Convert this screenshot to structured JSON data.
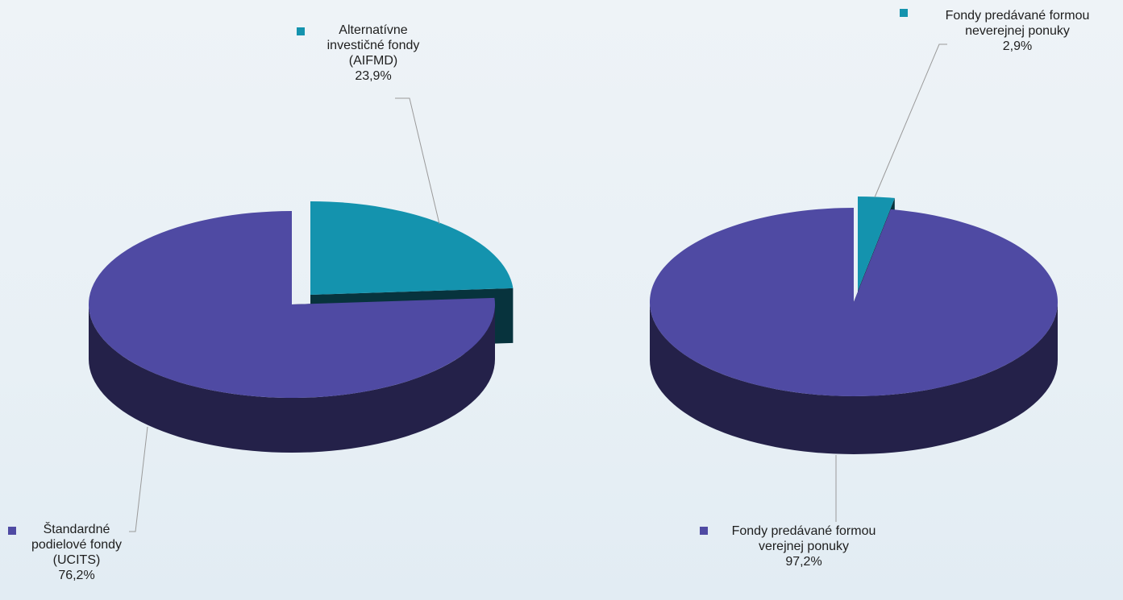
{
  "chart_data": [
    {
      "type": "pie",
      "labels": [
        "Alternatívne investičné fondy (AIFMD)",
        "Štandardné podielové fondy (UCITS)"
      ],
      "values": [
        23.9,
        76.2
      ],
      "value_labels": [
        "23,9%",
        "76,2%"
      ],
      "colors": [
        "#1493ae",
        "#4f4aa3"
      ]
    },
    {
      "type": "pie",
      "labels": [
        "Fondy predávané formou neverejnej ponuky",
        "Fondy predávané formou verejnej ponuky"
      ],
      "values": [
        2.9,
        97.2
      ],
      "value_labels": [
        "2,9%",
        "97,2%"
      ],
      "colors": [
        "#1493ae",
        "#4f4aa3"
      ]
    }
  ]
}
